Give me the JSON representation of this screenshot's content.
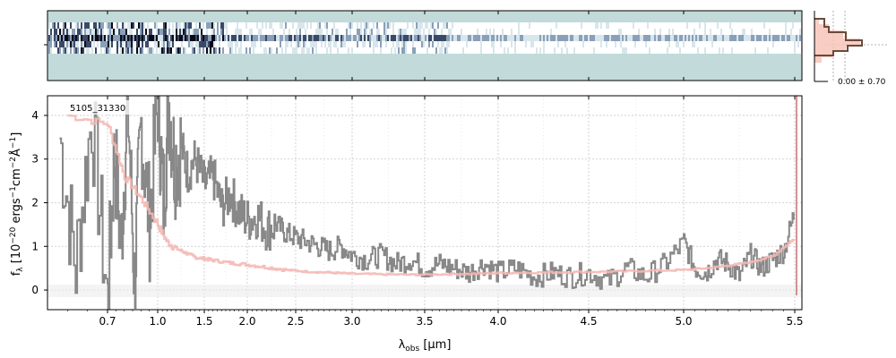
{
  "chart_data": {
    "type": "line",
    "panels": {
      "spectrum_2d": {
        "kind": "heatmap",
        "colormap": "bone_r",
        "background_color": "#c2dada"
      },
      "main": {
        "object_label": "5105_31330",
        "xlabel": "λobs [μm]",
        "ylabel": "f_λ [10^−20 ergs^−1cm^−2Å^−1]",
        "ylim": [
          -0.45,
          4.45
        ],
        "yticks": [
          0,
          1,
          2,
          3,
          4
        ],
        "ytick_labels": [
          "0",
          "1",
          "2",
          "3",
          "4"
        ],
        "xticks": [
          0.7,
          1.0,
          1.5,
          2.0,
          2.5,
          3.0,
          3.5,
          4.0,
          4.5,
          5.0,
          5.5
        ],
        "xtick_labels": [
          "0.7",
          "1.0",
          "1.5",
          "2.0",
          "2.5",
          "3.0",
          "3.5",
          "4.0",
          "4.5",
          "5.0",
          "5.5"
        ],
        "grid": true,
        "series": [
          {
            "role": "flux",
            "color": "#888888",
            "x": [
              0.58,
              0.62,
              0.66,
              0.7,
              0.74,
              0.78,
              0.82,
              0.86,
              0.9,
              0.95,
              1.0,
              1.06,
              1.12,
              1.18,
              1.25,
              1.32,
              1.4,
              1.5,
              1.6,
              1.7,
              1.8,
              1.9,
              2.0,
              2.1,
              2.2,
              2.3,
              2.4,
              2.5,
              2.6,
              2.7,
              2.8,
              2.9,
              3.0,
              3.1,
              3.2,
              3.3,
              3.4,
              3.5,
              3.6,
              3.7,
              3.8,
              3.9,
              4.0,
              4.1,
              4.2,
              4.3,
              4.4,
              4.5,
              4.6,
              4.7,
              4.8,
              4.9,
              5.0,
              5.05,
              5.1,
              5.15,
              5.2,
              5.25,
              5.3,
              5.35,
              5.4,
              5.45,
              5.5
            ],
            "y": [
              3.5,
              0.5,
              4.0,
              -0.3,
              3.2,
              1.0,
              4.4,
              0.2,
              3.8,
              1.5,
              4.4,
              2.0,
              4.3,
              2.9,
              3.3,
              2.7,
              3.0,
              2.4,
              2.6,
              1.9,
              2.2,
              1.8,
              1.6,
              1.7,
              1.4,
              1.5,
              1.3,
              1.2,
              1.1,
              1.0,
              0.9,
              1.0,
              0.8,
              0.7,
              0.8,
              0.6,
              0.7,
              0.5,
              0.6,
              0.5,
              0.4,
              0.6,
              0.4,
              0.5,
              0.3,
              0.4,
              0.3,
              0.4,
              0.2,
              0.5,
              0.3,
              0.6,
              1.1,
              0.5,
              0.4,
              0.7,
              0.6,
              0.3,
              0.8,
              0.5,
              0.7,
              0.9,
              1.8
            ]
          },
          {
            "role": "model",
            "color": "#f4b8b4",
            "x": [
              0.6,
              0.7,
              0.8,
              0.9,
              1.0,
              1.1,
              1.2,
              1.3,
              1.4,
              1.5,
              1.6,
              1.8,
              2.0,
              2.2,
              2.4,
              2.6,
              2.8,
              3.0,
              3.2,
              3.4,
              3.6,
              3.8,
              4.0,
              4.2,
              4.4,
              4.6,
              4.8,
              5.0,
              5.1,
              5.2,
              5.3,
              5.4,
              5.5
            ],
            "y": [
              4.0,
              3.8,
              2.6,
              2.1,
              1.5,
              1.1,
              0.95,
              0.85,
              0.75,
              0.72,
              0.68,
              0.62,
              0.58,
              0.52,
              0.46,
              0.42,
              0.4,
              0.37,
              0.36,
              0.35,
              0.36,
              0.37,
              0.39,
              0.4,
              0.41,
              0.42,
              0.44,
              0.46,
              0.5,
              0.56,
              0.64,
              0.78,
              1.2
            ]
          }
        ]
      },
      "side_histogram": {
        "annotation": "0.00 ± 0.70"
      }
    }
  },
  "colors": {
    "flux": "#888888",
    "model": "#f4b8b4",
    "model_edge": "#c87070",
    "hist_line": "#6b4a3a",
    "hist_fill": "#f7c4b8"
  }
}
